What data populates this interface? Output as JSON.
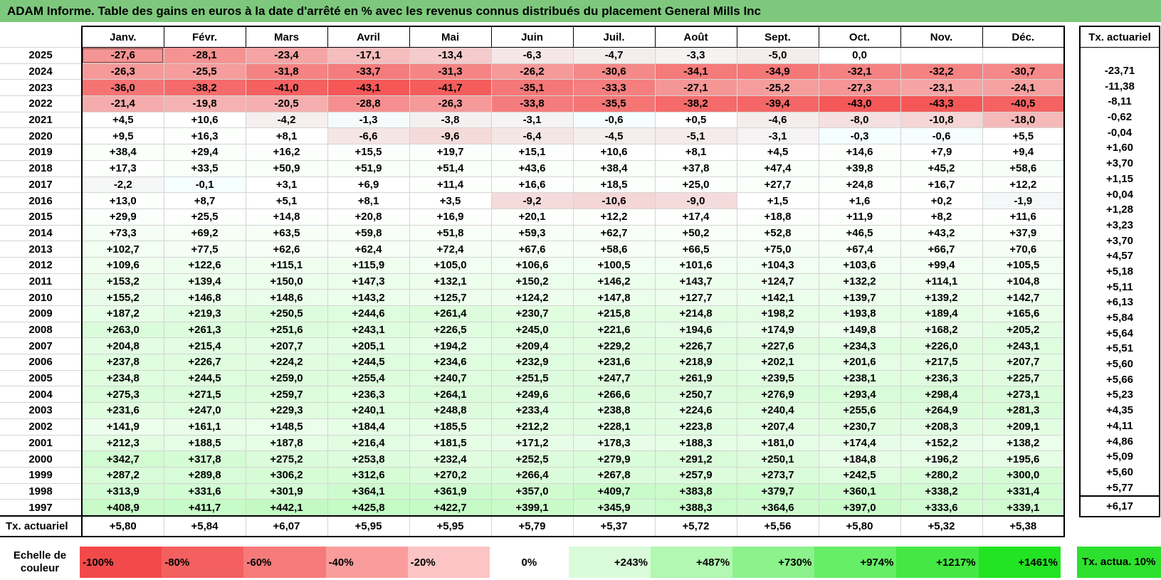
{
  "title": "ADAM Informe. Table des gains en euros à la date d'arrêté en % avec les revenus connus distribués du placement General Mills Inc",
  "months": [
    "Janv.",
    "Févr.",
    "Mars",
    "Avril",
    "Mai",
    "Juin",
    "Juil.",
    "Août",
    "Sept.",
    "Oct.",
    "Nov.",
    "Déc."
  ],
  "side_header": "Tx. actuariel",
  "rows": [
    {
      "year": "2025",
      "values": [
        "-27,6",
        "-28,1",
        "-23,4",
        "-17,1",
        "-13,4",
        "-6,3",
        "-4,7",
        "-3,3",
        "-5,0",
        "0,0",
        "",
        ""
      ],
      "tx": ""
    },
    {
      "year": "2024",
      "values": [
        "-26,3",
        "-25,5",
        "-31,8",
        "-33,7",
        "-31,3",
        "-26,2",
        "-30,6",
        "-34,1",
        "-34,9",
        "-32,1",
        "-32,2",
        "-30,7"
      ],
      "tx": "-23,71"
    },
    {
      "year": "2023",
      "values": [
        "-36,0",
        "-38,2",
        "-41,0",
        "-43,1",
        "-41,7",
        "-35,1",
        "-33,3",
        "-27,1",
        "-25,2",
        "-27,3",
        "-23,1",
        "-24,1"
      ],
      "tx": "-11,38"
    },
    {
      "year": "2022",
      "values": [
        "-21,4",
        "-19,8",
        "-20,5",
        "-28,8",
        "-26,3",
        "-33,8",
        "-35,5",
        "-38,2",
        "-39,4",
        "-43,0",
        "-43,3",
        "-40,5"
      ],
      "tx": "-8,11"
    },
    {
      "year": "2021",
      "values": [
        "+4,5",
        "+10,6",
        "-4,2",
        "-1,3",
        "-3,8",
        "-3,1",
        "-0,6",
        "+0,5",
        "-4,6",
        "-8,0",
        "-10,8",
        "-18,0"
      ],
      "tx": "-0,62"
    },
    {
      "year": "2020",
      "values": [
        "+9,5",
        "+16,3",
        "+8,1",
        "-6,6",
        "-9,6",
        "-6,4",
        "-4,5",
        "-5,1",
        "-3,1",
        "-0,3",
        "-0,6",
        "+5,5"
      ],
      "tx": "-0,04"
    },
    {
      "year": "2019",
      "values": [
        "+38,4",
        "+29,4",
        "+16,2",
        "+15,5",
        "+19,7",
        "+15,1",
        "+10,6",
        "+8,1",
        "+4,5",
        "+14,6",
        "+7,9",
        "+9,4"
      ],
      "tx": "+1,60"
    },
    {
      "year": "2018",
      "values": [
        "+17,3",
        "+33,5",
        "+50,9",
        "+51,9",
        "+51,4",
        "+43,6",
        "+38,4",
        "+37,8",
        "+47,4",
        "+39,8",
        "+45,2",
        "+58,6"
      ],
      "tx": "+3,70"
    },
    {
      "year": "2017",
      "values": [
        "-2,2",
        "-0,1",
        "+3,1",
        "+6,9",
        "+11,4",
        "+16,6",
        "+18,5",
        "+25,0",
        "+27,7",
        "+24,8",
        "+16,7",
        "+12,2"
      ],
      "tx": "+1,15"
    },
    {
      "year": "2016",
      "values": [
        "+13,0",
        "+8,7",
        "+5,1",
        "+8,1",
        "+3,5",
        "-9,2",
        "-10,6",
        "-9,0",
        "+1,5",
        "+1,6",
        "+0,2",
        "-1,9"
      ],
      "tx": "+0,04"
    },
    {
      "year": "2015",
      "values": [
        "+29,9",
        "+25,5",
        "+14,8",
        "+20,8",
        "+16,9",
        "+20,1",
        "+12,2",
        "+17,4",
        "+18,8",
        "+11,9",
        "+8,2",
        "+11,6"
      ],
      "tx": "+1,28"
    },
    {
      "year": "2014",
      "values": [
        "+73,3",
        "+69,2",
        "+63,5",
        "+59,8",
        "+51,8",
        "+59,3",
        "+62,7",
        "+50,2",
        "+52,8",
        "+46,5",
        "+43,2",
        "+37,9"
      ],
      "tx": "+3,23"
    },
    {
      "year": "2013",
      "values": [
        "+102,7",
        "+77,5",
        "+62,6",
        "+62,4",
        "+72,4",
        "+67,6",
        "+58,6",
        "+66,5",
        "+75,0",
        "+67,4",
        "+66,7",
        "+70,6"
      ],
      "tx": "+3,70"
    },
    {
      "year": "2012",
      "values": [
        "+109,6",
        "+122,6",
        "+115,1",
        "+115,9",
        "+105,0",
        "+106,6",
        "+100,5",
        "+101,6",
        "+104,3",
        "+103,6",
        "+99,4",
        "+105,5"
      ],
      "tx": "+4,57"
    },
    {
      "year": "2011",
      "values": [
        "+153,2",
        "+139,4",
        "+150,0",
        "+147,3",
        "+132,1",
        "+150,2",
        "+146,2",
        "+143,7",
        "+124,7",
        "+132,2",
        "+114,1",
        "+104,8"
      ],
      "tx": "+5,18"
    },
    {
      "year": "2010",
      "values": [
        "+155,2",
        "+146,8",
        "+148,6",
        "+143,2",
        "+125,7",
        "+124,2",
        "+147,8",
        "+127,7",
        "+142,1",
        "+139,7",
        "+139,2",
        "+142,7"
      ],
      "tx": "+5,11"
    },
    {
      "year": "2009",
      "values": [
        "+187,2",
        "+219,3",
        "+250,5",
        "+244,6",
        "+261,4",
        "+230,7",
        "+215,8",
        "+214,8",
        "+198,2",
        "+193,8",
        "+189,4",
        "+165,6"
      ],
      "tx": "+6,13"
    },
    {
      "year": "2008",
      "values": [
        "+263,0",
        "+261,3",
        "+251,6",
        "+243,1",
        "+226,5",
        "+245,0",
        "+221,6",
        "+194,6",
        "+174,9",
        "+149,8",
        "+168,2",
        "+205,2"
      ],
      "tx": "+5,84"
    },
    {
      "year": "2007",
      "values": [
        "+204,8",
        "+215,4",
        "+207,7",
        "+205,1",
        "+194,2",
        "+209,4",
        "+229,2",
        "+226,7",
        "+227,6",
        "+234,3",
        "+226,0",
        "+243,1"
      ],
      "tx": "+5,64"
    },
    {
      "year": "2006",
      "values": [
        "+237,8",
        "+226,7",
        "+224,2",
        "+244,5",
        "+234,6",
        "+232,9",
        "+231,6",
        "+218,9",
        "+202,1",
        "+201,6",
        "+217,5",
        "+207,7"
      ],
      "tx": "+5,51"
    },
    {
      "year": "2005",
      "values": [
        "+234,8",
        "+244,5",
        "+259,0",
        "+255,4",
        "+240,7",
        "+251,5",
        "+247,7",
        "+261,9",
        "+239,5",
        "+238,1",
        "+236,3",
        "+225,7"
      ],
      "tx": "+5,60"
    },
    {
      "year": "2004",
      "values": [
        "+275,3",
        "+271,5",
        "+259,7",
        "+236,3",
        "+264,1",
        "+249,6",
        "+266,6",
        "+250,7",
        "+276,9",
        "+293,4",
        "+298,4",
        "+273,1"
      ],
      "tx": "+5,66"
    },
    {
      "year": "2003",
      "values": [
        "+231,6",
        "+247,0",
        "+229,3",
        "+240,1",
        "+248,8",
        "+233,4",
        "+238,8",
        "+224,6",
        "+240,4",
        "+255,6",
        "+264,9",
        "+281,3"
      ],
      "tx": "+5,23"
    },
    {
      "year": "2002",
      "values": [
        "+141,9",
        "+161,1",
        "+148,5",
        "+184,4",
        "+185,5",
        "+212,2",
        "+228,1",
        "+223,8",
        "+207,4",
        "+230,7",
        "+208,3",
        "+209,1"
      ],
      "tx": "+4,35"
    },
    {
      "year": "2001",
      "values": [
        "+212,3",
        "+188,5",
        "+187,8",
        "+216,4",
        "+181,5",
        "+171,2",
        "+178,3",
        "+188,3",
        "+181,0",
        "+174,4",
        "+152,2",
        "+138,2"
      ],
      "tx": "+4,11"
    },
    {
      "year": "2000",
      "values": [
        "+342,7",
        "+317,8",
        "+275,2",
        "+253,8",
        "+232,4",
        "+252,5",
        "+279,9",
        "+291,2",
        "+250,1",
        "+184,8",
        "+196,2",
        "+195,6"
      ],
      "tx": "+4,86"
    },
    {
      "year": "1999",
      "values": [
        "+287,2",
        "+289,8",
        "+306,2",
        "+312,6",
        "+270,2",
        "+266,4",
        "+267,8",
        "+257,9",
        "+273,7",
        "+242,5",
        "+280,2",
        "+300,0"
      ],
      "tx": "+5,09"
    },
    {
      "year": "1998",
      "values": [
        "+313,9",
        "+331,6",
        "+301,9",
        "+364,1",
        "+361,9",
        "+357,0",
        "+409,7",
        "+383,8",
        "+379,7",
        "+360,1",
        "+338,2",
        "+331,4"
      ],
      "tx": "+5,60"
    },
    {
      "year": "1997",
      "values": [
        "+408,9",
        "+411,7",
        "+442,1",
        "+425,8",
        "+422,7",
        "+399,1",
        "+345,9",
        "+388,3",
        "+364,6",
        "+397,0",
        "+333,6",
        "+339,1"
      ],
      "tx": "+5,77"
    }
  ],
  "annual": {
    "label": "Tx. actuariel",
    "values": [
      "+5,80",
      "+5,84",
      "+6,07",
      "+5,95",
      "+5,95",
      "+5,79",
      "+5,37",
      "+5,72",
      "+5,56",
      "+5,80",
      "+5,32",
      "+5,38"
    ],
    "tx": "+6,17"
  },
  "scale": {
    "label": "Echelle de couleur",
    "items": [
      {
        "text": "-100%",
        "color": "#f24a4a",
        "kind": "neg"
      },
      {
        "text": "-80%",
        "color": "#f46060",
        "kind": "neg"
      },
      {
        "text": "-60%",
        "color": "#f77a7a",
        "kind": "neg"
      },
      {
        "text": "-40%",
        "color": "#fa9c9c",
        "kind": "neg"
      },
      {
        "text": "-20%",
        "color": "#fcc4c4",
        "kind": "neg"
      },
      {
        "text": "0%",
        "color": "#ffffff",
        "kind": "zero"
      },
      {
        "text": "+243%",
        "color": "#d9fbd9",
        "kind": "pos"
      },
      {
        "text": "+487%",
        "color": "#b2f7b2",
        "kind": "pos"
      },
      {
        "text": "+730%",
        "color": "#8cf28c",
        "kind": "pos"
      },
      {
        "text": "+974%",
        "color": "#66ee66",
        "kind": "pos"
      },
      {
        "text": "+1217%",
        "color": "#44e844",
        "kind": "pos"
      },
      {
        "text": "+1461%",
        "color": "#22e422",
        "kind": "pos"
      }
    ],
    "tx_label": "Tx. actua. 10%"
  }
}
